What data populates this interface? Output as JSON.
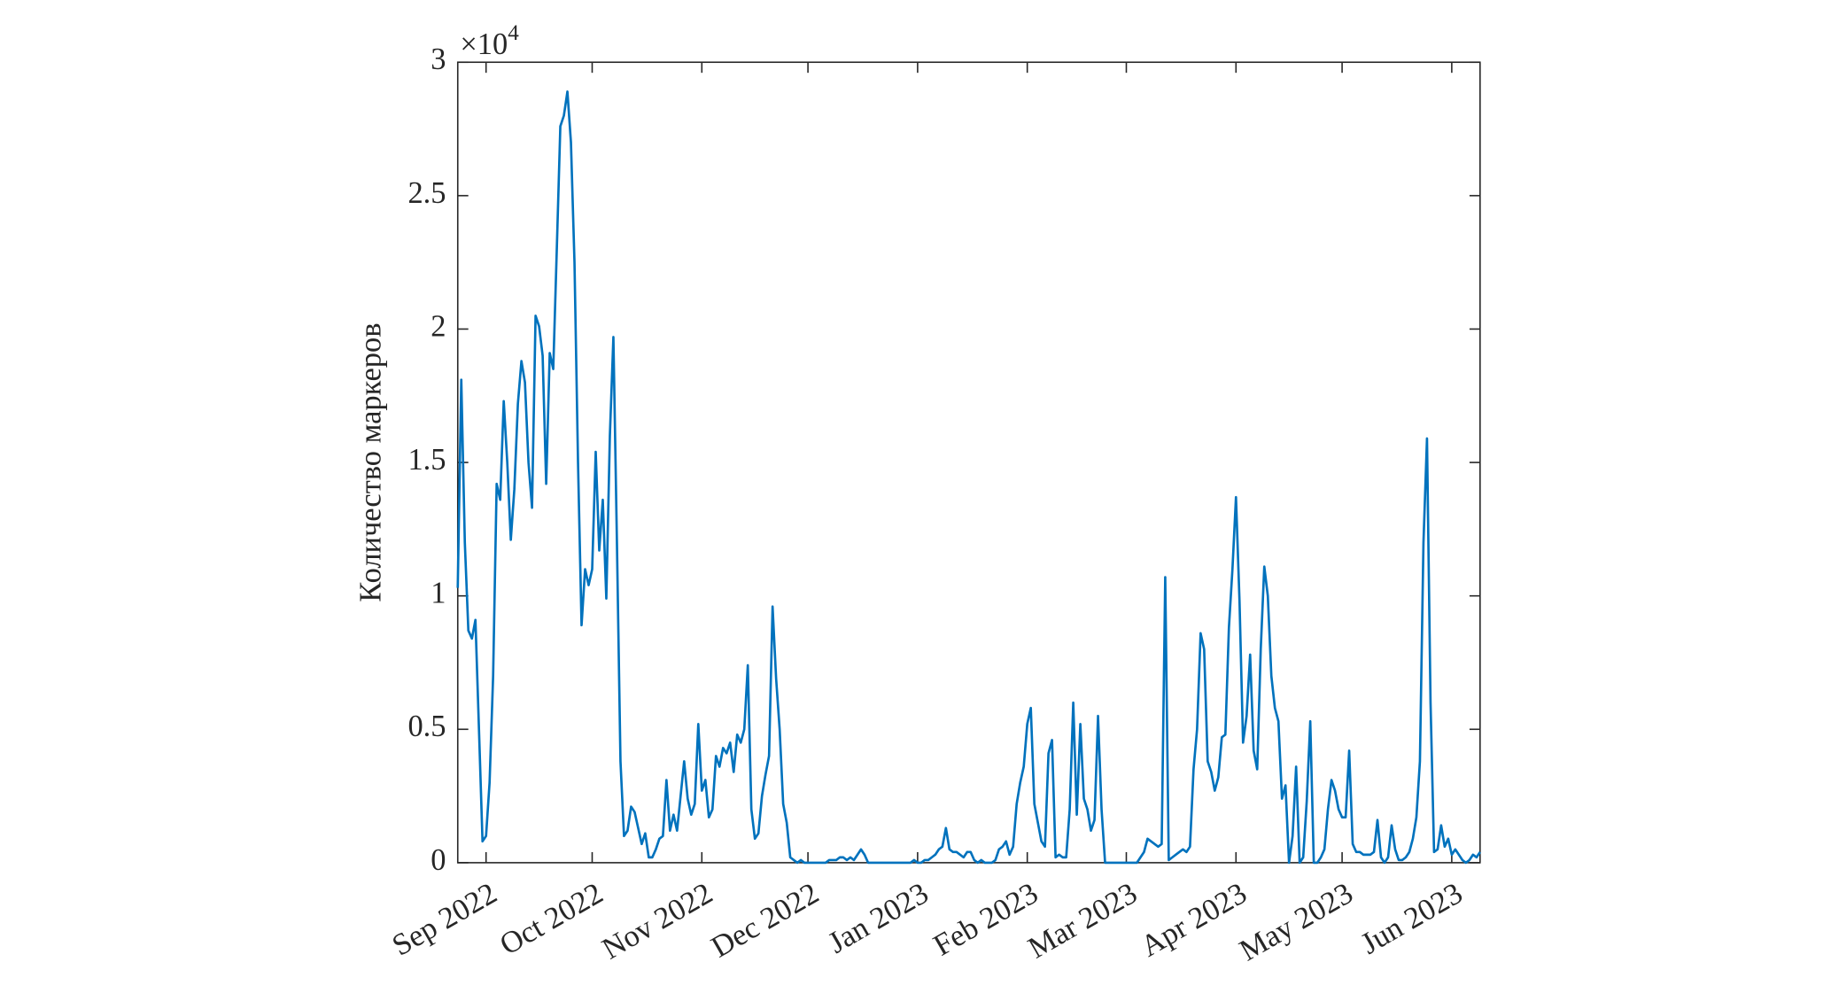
{
  "chart_data": {
    "type": "line",
    "y_label": "Количество маркеров",
    "y_multiplier": {
      "base": "×10",
      "exponent": "4"
    },
    "xlim": [
      0,
      289
    ],
    "xticks": [
      {
        "value": 8,
        "label": "Sep 2022"
      },
      {
        "value": 38,
        "label": "Oct 2022"
      },
      {
        "value": 69,
        "label": "Nov 2022"
      },
      {
        "value": 99,
        "label": "Dec 2022"
      },
      {
        "value": 130,
        "label": "Jan 2023"
      },
      {
        "value": 161,
        "label": "Feb 2023"
      },
      {
        "value": 189,
        "label": "Mar 2023"
      },
      {
        "value": 220,
        "label": "Apr 2023"
      },
      {
        "value": 250,
        "label": "May 2023"
      },
      {
        "value": 281,
        "label": "Jun 2023"
      }
    ],
    "ylim": [
      0,
      3
    ],
    "yticks": [
      0,
      0.5,
      1,
      1.5,
      2,
      2.5,
      3
    ],
    "grid": false,
    "x": [
      0,
      1,
      2,
      3,
      4,
      5,
      6,
      7,
      8,
      9,
      10,
      11,
      12,
      13,
      14,
      15,
      16,
      17,
      18,
      19,
      20,
      21,
      22,
      23,
      24,
      25,
      26,
      27,
      28,
      29,
      30,
      31,
      32,
      33,
      34,
      35,
      36,
      37,
      38,
      39,
      40,
      41,
      42,
      43,
      44,
      45,
      46,
      47,
      48,
      49,
      50,
      51,
      52,
      53,
      54,
      55,
      56,
      57,
      58,
      59,
      60,
      61,
      62,
      63,
      64,
      65,
      66,
      67,
      68,
      69,
      70,
      71,
      72,
      73,
      74,
      75,
      76,
      77,
      78,
      79,
      80,
      81,
      82,
      83,
      84,
      85,
      86,
      87,
      88,
      89,
      90,
      91,
      92,
      93,
      94,
      95,
      96,
      97,
      98,
      99,
      100,
      101,
      102,
      103,
      104,
      105,
      106,
      107,
      108,
      109,
      110,
      111,
      112,
      113,
      114,
      115,
      116,
      117,
      118,
      119,
      120,
      121,
      122,
      123,
      124,
      125,
      126,
      127,
      128,
      129,
      130,
      131,
      132,
      133,
      134,
      135,
      136,
      137,
      138,
      139,
      140,
      141,
      142,
      143,
      144,
      145,
      146,
      147,
      148,
      149,
      150,
      151,
      152,
      153,
      154,
      155,
      156,
      157,
      158,
      159,
      160,
      161,
      162,
      163,
      164,
      165,
      166,
      167,
      168,
      169,
      170,
      171,
      172,
      173,
      174,
      175,
      176,
      177,
      178,
      179,
      180,
      181,
      182,
      183,
      184,
      185,
      186,
      187,
      188,
      189,
      190,
      191,
      192,
      193,
      194,
      195,
      196,
      197,
      198,
      199,
      200,
      201,
      202,
      203,
      204,
      205,
      206,
      207,
      208,
      209,
      210,
      211,
      212,
      213,
      214,
      215,
      216,
      217,
      218,
      219,
      220,
      221,
      222,
      223,
      224,
      225,
      226,
      227,
      228,
      229,
      230,
      231,
      232,
      233,
      234,
      235,
      236,
      237,
      238,
      239,
      240,
      241,
      242,
      243,
      244,
      245,
      246,
      247,
      248,
      249,
      250,
      251,
      252,
      253,
      254,
      255,
      256,
      257,
      258,
      259,
      260,
      261,
      262,
      263,
      264,
      265,
      266,
      267,
      268,
      269,
      270,
      271,
      272,
      273,
      274,
      275,
      276,
      277,
      278,
      279,
      280,
      281,
      282,
      283,
      284,
      285,
      286,
      287,
      288,
      289
    ],
    "series": [
      {
        "color": "#0072BD",
        "values": [
          1.03,
          1.81,
          1.2,
          0.87,
          0.84,
          0.91,
          0.5,
          0.08,
          0.1,
          0.3,
          0.7,
          1.42,
          1.36,
          1.73,
          1.5,
          1.21,
          1.4,
          1.72,
          1.88,
          1.8,
          1.5,
          1.33,
          2.05,
          2.01,
          1.9,
          1.42,
          1.91,
          1.85,
          2.3,
          2.76,
          2.8,
          2.89,
          2.7,
          2.25,
          1.5,
          0.89,
          1.1,
          1.04,
          1.1,
          1.54,
          1.17,
          1.36,
          0.99,
          1.6,
          1.97,
          1.2,
          0.38,
          0.1,
          0.12,
          0.21,
          0.19,
          0.13,
          0.07,
          0.11,
          0.02,
          0.02,
          0.05,
          0.09,
          0.1,
          0.31,
          0.12,
          0.18,
          0.12,
          0.25,
          0.38,
          0.24,
          0.18,
          0.22,
          0.52,
          0.27,
          0.31,
          0.17,
          0.2,
          0.4,
          0.36,
          0.43,
          0.41,
          0.45,
          0.34,
          0.48,
          0.45,
          0.5,
          0.74,
          0.2,
          0.09,
          0.11,
          0.25,
          0.33,
          0.4,
          0.96,
          0.69,
          0.5,
          0.22,
          0.15,
          0.02,
          0.01,
          0,
          0.01,
          0,
          0,
          0,
          0,
          0,
          0,
          0,
          0.01,
          0.01,
          0.01,
          0.02,
          0.02,
          0.01,
          0.02,
          0.01,
          0.03,
          0.05,
          0.03,
          0,
          0,
          0,
          0,
          0,
          0,
          0,
          0,
          0,
          0,
          0,
          0,
          0,
          0.01,
          0,
          0,
          0.01,
          0.01,
          0.02,
          0.03,
          0.05,
          0.06,
          0.13,
          0.05,
          0.04,
          0.04,
          0.03,
          0.02,
          0.04,
          0.04,
          0.01,
          0,
          0.01,
          0,
          0,
          0,
          0.01,
          0.05,
          0.06,
          0.08,
          0.03,
          0.06,
          0.22,
          0.3,
          0.36,
          0.52,
          0.58,
          0.22,
          0.15,
          0.08,
          0.06,
          0.41,
          0.46,
          0.02,
          0.03,
          0.02,
          0.02,
          0.2,
          0.6,
          0.18,
          0.52,
          0.24,
          0.2,
          0.12,
          0.16,
          0.55,
          0.2,
          0,
          0,
          0,
          0,
          0,
          0,
          0,
          0,
          0,
          0,
          0.02,
          0.04,
          0.09,
          0.08,
          0.07,
          0.06,
          0.07,
          1.07,
          0.01,
          0.02,
          0.03,
          0.04,
          0.05,
          0.04,
          0.06,
          0.35,
          0.5,
          0.86,
          0.8,
          0.38,
          0.34,
          0.27,
          0.32,
          0.47,
          0.48,
          0.88,
          1.1,
          1.37,
          0.98,
          0.45,
          0.55,
          0.78,
          0.42,
          0.35,
          0.8,
          1.11,
          1.0,
          0.7,
          0.58,
          0.53,
          0.24,
          0.29,
          0,
          0.1,
          0.36,
          0,
          0.02,
          0.23,
          0.53,
          0,
          0,
          0.02,
          0.05,
          0.2,
          0.31,
          0.27,
          0.2,
          0.17,
          0.17,
          0.42,
          0.07,
          0.04,
          0.04,
          0.03,
          0.03,
          0.03,
          0.04,
          0.16,
          0.02,
          0,
          0.02,
          0.14,
          0.05,
          0.01,
          0.01,
          0.02,
          0.04,
          0.09,
          0.17,
          0.38,
          1.2,
          1.59,
          0.6,
          0.04,
          0.05,
          0.14,
          0.06,
          0.09,
          0.03,
          0.05,
          0.03,
          0.01,
          0,
          0.01,
          0.03,
          0.02,
          0.04
        ]
      }
    ]
  }
}
